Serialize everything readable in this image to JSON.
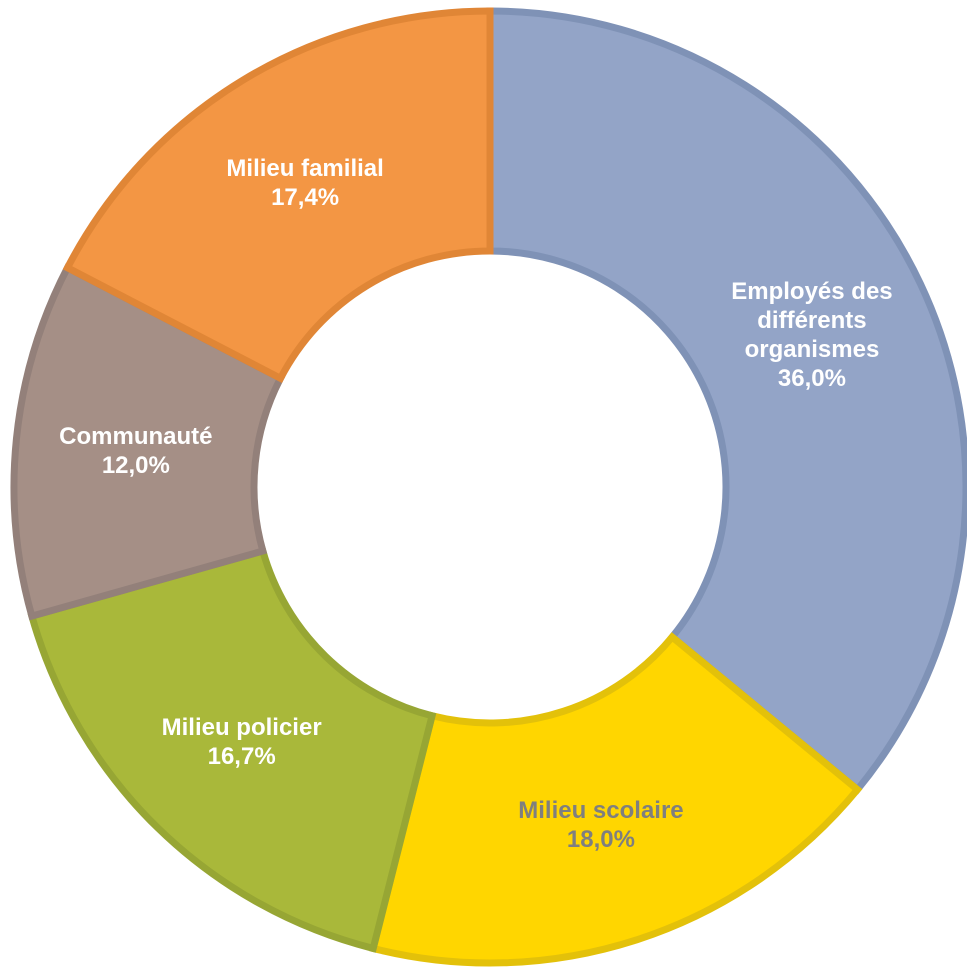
{
  "chart_data": {
    "type": "donut",
    "categories": [
      "Employés des différents organismes",
      "Milieu scolaire",
      "Milieu policier",
      "Communauté",
      "Milieu familial"
    ],
    "values": [
      36.0,
      18.0,
      16.7,
      12.0,
      17.4
    ],
    "value_labels": [
      "36,0%",
      "18,0%",
      "16,7%",
      "12,0%",
      "17,4%"
    ],
    "colors": [
      "#93a4c7",
      "#ffd600",
      "#a9b83a",
      "#a58f86",
      "#f39644"
    ],
    "edgecolors": [
      "#7f92b6",
      "#e3c10a",
      "#97a634",
      "#93807a",
      "#e08636"
    ],
    "label_colors": [
      "#ffffff",
      "#7f7f7f",
      "#ffffff",
      "#ffffff",
      "#ffffff"
    ]
  }
}
